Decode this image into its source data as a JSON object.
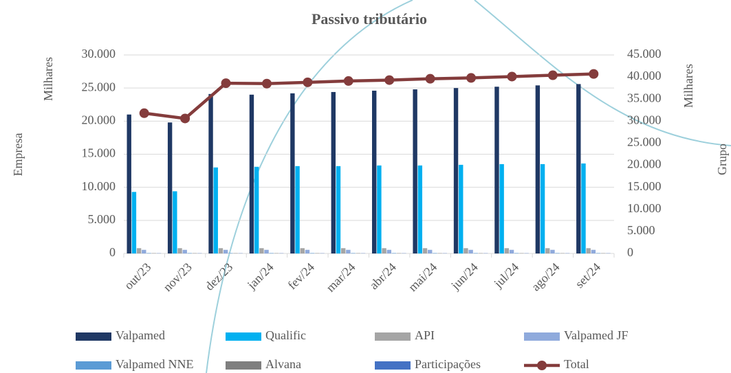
{
  "chart_data": {
    "type": "bar",
    "title": "Passivo tributário",
    "y_label": "Empresa",
    "y_unit": "Milhares",
    "y2_label": "Grupo",
    "y2_unit": "Milhares",
    "categories": [
      "out/23",
      "nov/23",
      "dez/23",
      "jan/24",
      "fev/24",
      "mar/24",
      "abr/24",
      "mai/24",
      "jun/24",
      "jul/24",
      "ago/24",
      "set/24"
    ],
    "series": [
      {
        "name": "Valpamed",
        "color": "#1f3864",
        "values": [
          21000,
          19800,
          24100,
          24000,
          24200,
          24400,
          24600,
          24800,
          25000,
          25200,
          25400,
          25600
        ]
      },
      {
        "name": "Qualific",
        "color": "#00b0f0",
        "values": [
          9300,
          9400,
          13000,
          13100,
          13200,
          13200,
          13300,
          13300,
          13400,
          13500,
          13500,
          13600
        ]
      },
      {
        "name": "API",
        "color": "#a5a5a5",
        "values": [
          800,
          800,
          800,
          800,
          800,
          800,
          800,
          800,
          800,
          800,
          800,
          800
        ]
      },
      {
        "name": "Valpamed JF",
        "color": "#8faadc",
        "values": [
          550,
          550,
          550,
          550,
          550,
          550,
          550,
          550,
          550,
          550,
          550,
          550
        ]
      },
      {
        "name": "Valpamed NNE",
        "color": "#5b9bd5",
        "values": [
          60,
          60,
          60,
          60,
          60,
          60,
          60,
          60,
          60,
          60,
          60,
          60
        ]
      },
      {
        "name": "Alvana",
        "color": "#7f7f7f",
        "values": [
          40,
          40,
          40,
          40,
          40,
          40,
          40,
          40,
          40,
          40,
          40,
          40
        ]
      },
      {
        "name": "Participações",
        "color": "#4472c4",
        "values": [
          30,
          30,
          30,
          30,
          30,
          30,
          30,
          30,
          30,
          30,
          30,
          30
        ]
      },
      {
        "name": "Total",
        "color": "#843c3c",
        "type": "line",
        "axis": "y2",
        "values": [
          31800,
          30600,
          38600,
          38500,
          38800,
          39100,
          39300,
          39600,
          39800,
          40100,
          40400,
          40700
        ]
      }
    ],
    "ylim": [
      0,
      30000
    ],
    "yticks": [
      0,
      {
        "value": 5000,
        "label": "5.000"
      },
      {
        "value": 10000,
        "label": "10.000"
      },
      {
        "value": 15000,
        "label": "15.000"
      },
      {
        "value": 20000,
        "label": "20.000"
      },
      {
        "value": 25000,
        "label": "25.000"
      },
      {
        "value": 30000,
        "label": "30.000"
      }
    ],
    "y2lim": [
      0,
      45000
    ],
    "y2ticks": [
      0,
      {
        "value": 5000,
        "label": "5.000"
      },
      {
        "value": 10000,
        "label": "10.000"
      },
      {
        "value": 15000,
        "label": "15.000"
      },
      {
        "value": 20000,
        "label": "20.000"
      },
      {
        "value": 25000,
        "label": "25.000"
      },
      {
        "value": 30000,
        "label": "30.000"
      },
      {
        "value": 35000,
        "label": "35.000"
      },
      {
        "value": 40000,
        "label": "40.000"
      },
      {
        "value": 45000,
        "label": "45.000"
      }
    ],
    "grid": true
  }
}
